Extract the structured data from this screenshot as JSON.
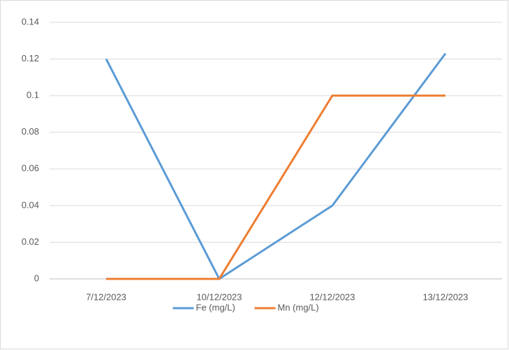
{
  "chart_data": {
    "type": "line",
    "categories": [
      "7/12/2023",
      "10/12/2023",
      "12/12/2023",
      "13/12/2023"
    ],
    "series": [
      {
        "name": "Fe (mg/L)",
        "color": "#5b9bd5",
        "values": [
          0.12,
          0,
          0.04,
          0.123
        ]
      },
      {
        "name": "Mn (mg/L)",
        "color": "#ed7d31",
        "values": [
          0,
          0,
          0.1,
          0.1
        ]
      }
    ],
    "ylim": [
      0,
      0.14
    ],
    "yticks": [
      0,
      0.02,
      0.04,
      0.06,
      0.08,
      0.1,
      0.12,
      0.14
    ],
    "grid": true,
    "legend": "bottom"
  }
}
